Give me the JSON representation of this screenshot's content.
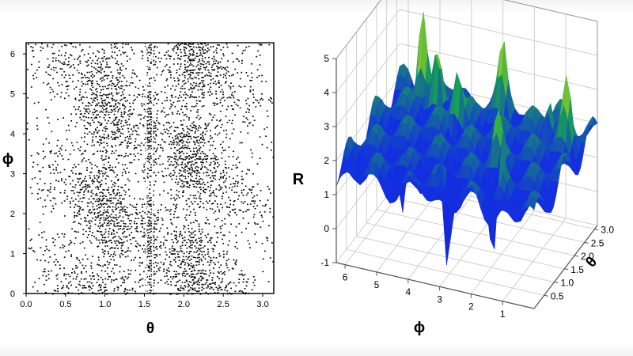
{
  "colors": {
    "background": "#ffffff",
    "points": "#000000",
    "surface_low": "#1a1fd0",
    "surface_mid": "#18a84a",
    "surface_high": "#f5e21a",
    "surface_peak": "#d8421a",
    "grid": "#cfcfcf"
  },
  "chart_data": [
    {
      "type": "scatter",
      "title": "",
      "xlabel": "θ",
      "ylabel": "ϕ",
      "xlim": [
        0,
        3.14
      ],
      "ylim": [
        0,
        6.28
      ],
      "xticks": [
        "0.0",
        "0.5",
        "1.0",
        "1.5",
        "2.0",
        "2.5",
        "3.0"
      ],
      "yticks": [
        "0",
        "1",
        "2",
        "3",
        "4",
        "5",
        "6"
      ],
      "grid": false,
      "series": [
        {
          "density_bands": [
            {
              "theta_center": 1.05,
              "width": 0.35,
              "density": 0.55
            },
            {
              "theta_center": 1.57,
              "width": 0.06,
              "density": 0.9
            },
            {
              "theta_center": 2.1,
              "width": 0.35,
              "density": 0.55
            },
            {
              "theta_center": 0.45,
              "width": 0.3,
              "density": 0.12
            },
            {
              "theta_center": 2.7,
              "width": 0.3,
              "density": 0.12
            }
          ]
        }
      ]
    },
    {
      "type": "surface",
      "title": "",
      "xlabel": "ϕ",
      "ylabel": "θ",
      "zlabel": "R",
      "xlim": [
        0,
        6.28
      ],
      "ylim": [
        0,
        3.14
      ],
      "zlim": [
        -1,
        5
      ],
      "xticks": [
        "1",
        "2",
        "3",
        "4",
        "5",
        "6"
      ],
      "yticks": [
        "0.5",
        "1.0",
        "1.5",
        "2.0",
        "2.5",
        "3.0"
      ],
      "zticks": [
        "-1",
        "0",
        "1",
        "2",
        "3",
        "4",
        "5"
      ],
      "grid": true,
      "baseline_z": 1.9,
      "peaks": [
        {
          "phi": 5.4,
          "theta": 2.9,
          "z": 4.7
        },
        {
          "phi": 4.8,
          "theta": 2.7,
          "z": 3.4
        },
        {
          "phi": 3.9,
          "theta": 2.3,
          "z": 3.3
        },
        {
          "phi": 2.9,
          "theta": 3.0,
          "z": 3.5
        },
        {
          "phi": 1.2,
          "theta": 2.6,
          "z": 3.6
        },
        {
          "phi": 0.5,
          "theta": 2.4,
          "z": 3.4
        },
        {
          "phi": 2.0,
          "theta": 1.3,
          "z": 3.1
        },
        {
          "phi": 1.5,
          "theta": 0.6,
          "z": 3.0
        }
      ],
      "dips": [
        {
          "phi": 3.0,
          "theta": 0.4,
          "z": -1.0
        },
        {
          "phi": 1.6,
          "theta": 0.5,
          "z": -0.6
        },
        {
          "phi": 4.7,
          "theta": 0.8,
          "z": -0.3
        }
      ]
    }
  ]
}
